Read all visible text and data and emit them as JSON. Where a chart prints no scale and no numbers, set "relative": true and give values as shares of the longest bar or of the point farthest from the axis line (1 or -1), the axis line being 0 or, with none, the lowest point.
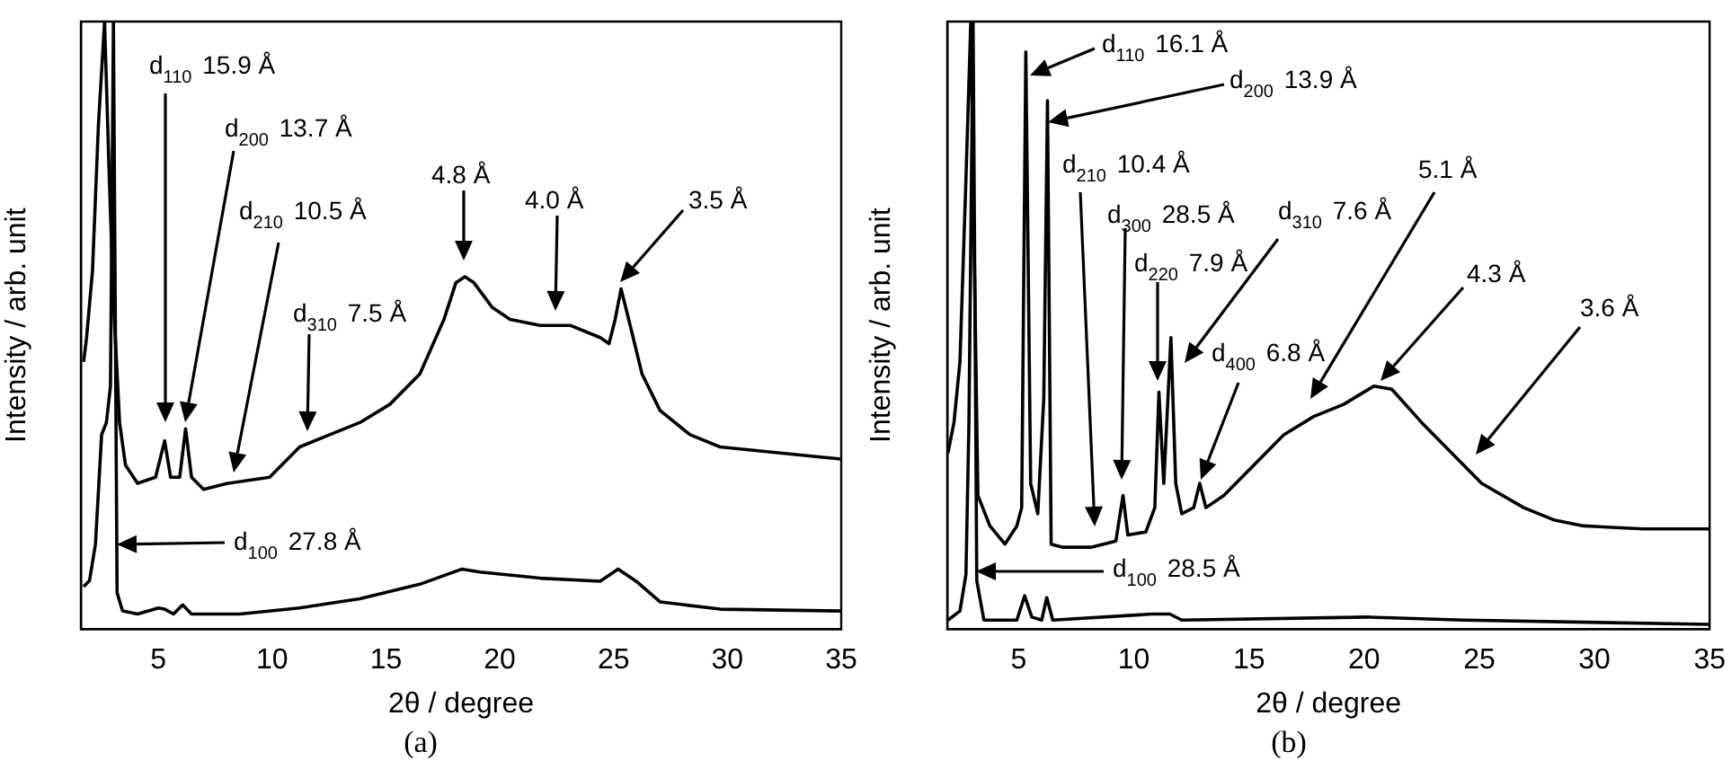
{
  "chart_data": [
    {
      "type": "line",
      "title": "(a)",
      "xlabel": "2θ / degree",
      "ylabel": "Intensity / arb. unit",
      "relative": true,
      "xlim": [
        1.6,
        35
      ],
      "xticks": [
        5,
        10,
        15,
        20,
        25,
        30,
        35
      ],
      "series": [
        {
          "color": "#000000",
          "x": [
            1.72,
            1.85,
            2.11,
            2.37,
            2.64,
            2.85,
            3.03,
            3.3,
            3.56,
            4.09,
            4.88,
            5.28,
            5.54,
            5.94,
            6.2,
            6.46,
            6.99,
            8.05,
            9.89,
            11.21,
            12.53,
            13.85,
            15.17,
            16.49,
            17.55,
            18.07,
            18.47,
            18.87,
            19.66,
            20.45,
            21.77,
            23.09,
            24.41,
            24.8,
            25.07,
            25.33,
            25.73,
            26.25,
            27.04,
            28.36,
            29.68,
            32.32,
            35
          ],
          "values": [
            0.44,
            0.48,
            0.59,
            0.83,
            1,
            0.74,
            0.54,
            0.34,
            0.27,
            0.24,
            0.25,
            0.31,
            0.25,
            0.25,
            0.33,
            0.25,
            0.23,
            0.24,
            0.25,
            0.3,
            0.32,
            0.34,
            0.37,
            0.42,
            0.51,
            0.57,
            0.58,
            0.57,
            0.53,
            0.51,
            0.5,
            0.5,
            0.48,
            0.47,
            0.51,
            0.56,
            0.5,
            0.42,
            0.36,
            0.32,
            0.3,
            0.29,
            0.28
          ]
        },
        {
          "color": "#000000",
          "x": [
            1.72,
            1.98,
            2.24,
            2.51,
            2.72,
            2.9,
            3.03,
            3.19,
            3.43,
            4.09,
            5.01,
            5.28,
            5.67,
            6.07,
            6.46,
            8.58,
            11.2,
            13.85,
            16.49,
            18.34,
            19.13,
            21.77,
            24.41,
            25.2,
            25.99,
            27.04,
            29.68,
            35
          ],
          "values": [
            0.07,
            0.08,
            0.14,
            0.32,
            0.34,
            0.4,
            1,
            0.06,
            0.03,
            0.025,
            0.035,
            0.033,
            0.025,
            0.04,
            0.025,
            0.025,
            0.035,
            0.05,
            0.074,
            0.099,
            0.094,
            0.084,
            0.079,
            0.099,
            0.079,
            0.045,
            0.033,
            0.03
          ]
        }
      ],
      "annotations": [
        "d$_{110}$ 15.9 Å",
        "d$_{200}$ 13.7 Å",
        "d$_{210}$ 10.5 Å",
        "d$_{310}$ 7.5 Å",
        "4.8 Å",
        "4.0 Å",
        "3.5 Å",
        "d$_{100}$ 27.8 Å"
      ]
    },
    {
      "type": "line",
      "title": "(b)",
      "xlabel": "2θ / degree",
      "ylabel": "Intensity / arb. unit",
      "relative": true,
      "xlim": [
        1.9,
        35
      ],
      "xticks": [
        5,
        10,
        15,
        20,
        25,
        30,
        35
      ],
      "series": [
        {
          "color": "#000000",
          "x": [
            1.93,
            2.19,
            2.45,
            2.71,
            2.92,
            3.23,
            3.75,
            4.4,
            4.92,
            5.13,
            5.31,
            5.52,
            5.83,
            6.09,
            6.25,
            6.41,
            6.88,
            8.18,
            9.22,
            9.53,
            9.74,
            10.52,
            10.91,
            11.09,
            11.3,
            11.61,
            11.82,
            12.08,
            12.6,
            12.86,
            13.13,
            13.91,
            15.21,
            16.51,
            17.81,
            19.11,
            20.42,
            21.2,
            22.5,
            23.8,
            25.1,
            26.93,
            28.23,
            29.53,
            32.14,
            35
          ],
          "values": [
            0.29,
            0.34,
            0.44,
            0.74,
            1,
            0.22,
            0.17,
            0.14,
            0.17,
            0.2,
            0.95,
            0.24,
            0.19,
            0.38,
            0.87,
            0.14,
            0.135,
            0.135,
            0.145,
            0.22,
            0.155,
            0.16,
            0.2,
            0.39,
            0.24,
            0.48,
            0.24,
            0.19,
            0.2,
            0.24,
            0.2,
            0.22,
            0.27,
            0.32,
            0.35,
            0.37,
            0.4,
            0.395,
            0.34,
            0.29,
            0.24,
            0.2,
            0.18,
            0.17,
            0.165,
            0.165
          ]
        },
        {
          "color": "#000000",
          "x": [
            1.93,
            2.45,
            2.71,
            2.84,
            3.02,
            3.18,
            3.49,
            4.92,
            5.26,
            5.57,
            6.0,
            6.22,
            6.48,
            10.78,
            11.56,
            12.08,
            20.16,
            24.32,
            35
          ],
          "values": [
            0.015,
            0.03,
            0.09,
            0.34,
            1,
            0.08,
            0.015,
            0.015,
            0.055,
            0.02,
            0.015,
            0.052,
            0.015,
            0.025,
            0.025,
            0.015,
            0.02,
            0.015,
            0.008
          ]
        }
      ],
      "annotations": [
        "d$_{110}$ 16.1 Å",
        "d$_{200}$ 13.9 Å",
        "d$_{210}$ 10.4 Å",
        "d$_{300}$ 28.5 Å",
        "d$_{220}$ 7.9 Å",
        "d$_{310}$ 7.6 Å",
        "d$_{400}$ 6.8 Å",
        "5.1 Å",
        "4.3 Å",
        "3.6 Å",
        "d$_{100}$ 28.5 Å"
      ]
    }
  ]
}
